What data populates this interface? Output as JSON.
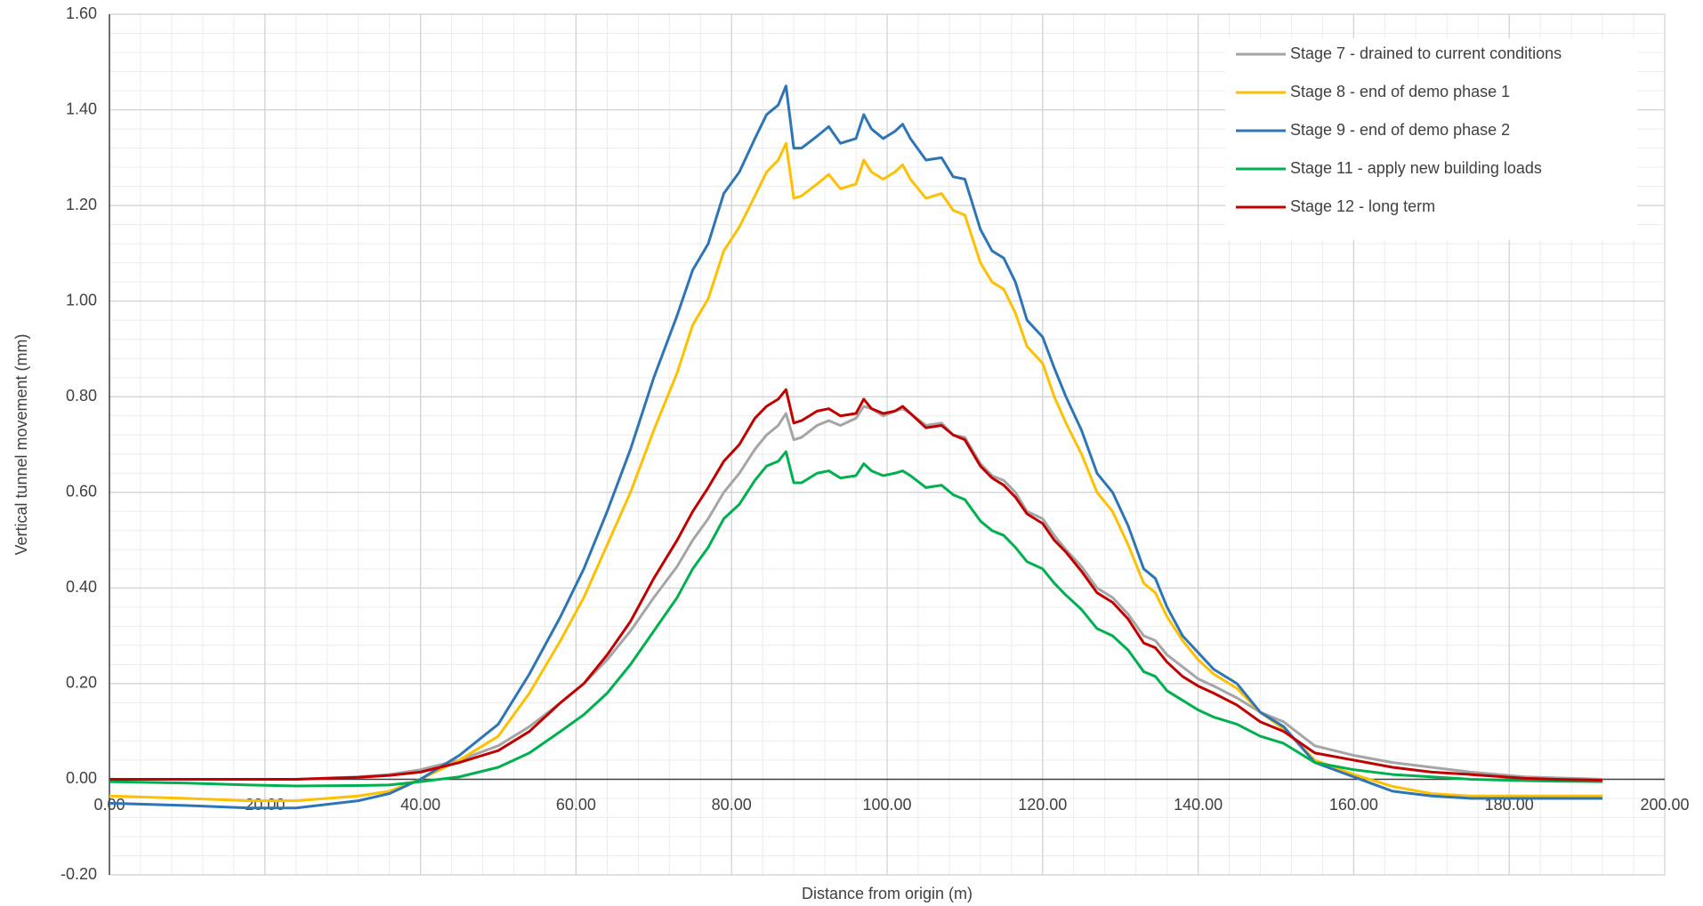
{
  "chart_data": {
    "type": "line",
    "x_label": "Distance from origin (m)",
    "y_label": "Vertical tunnel movement (mm)",
    "x": [
      0,
      10,
      18,
      24,
      32,
      36,
      40,
      45,
      50,
      54,
      58,
      61,
      64,
      67,
      70,
      73,
      75,
      77,
      79,
      81,
      83,
      84.5,
      86,
      87,
      88,
      89,
      91,
      92.5,
      94,
      96,
      97,
      98,
      99.5,
      101,
      102,
      103,
      105,
      107,
      108.5,
      110,
      112,
      113.5,
      115,
      116.5,
      118,
      120,
      121.5,
      123,
      125,
      127,
      129,
      131,
      133,
      134.5,
      136,
      138,
      140,
      142,
      145,
      148,
      151,
      155,
      160,
      165,
      170,
      175,
      182,
      186,
      192
    ],
    "series": [
      {
        "name": "Stage 7 - drained to current conditions",
        "color": "#a5a5a5",
        "values": [
          0,
          0,
          0,
          0,
          0.005,
          0.01,
          0.02,
          0.04,
          0.07,
          0.11,
          0.16,
          0.2,
          0.25,
          0.31,
          0.38,
          0.445,
          0.5,
          0.545,
          0.6,
          0.64,
          0.69,
          0.72,
          0.74,
          0.765,
          0.71,
          0.715,
          0.74,
          0.75,
          0.74,
          0.755,
          0.78,
          0.775,
          0.76,
          0.77,
          0.775,
          0.765,
          0.74,
          0.745,
          0.72,
          0.715,
          0.66,
          0.635,
          0.625,
          0.6,
          0.56,
          0.545,
          0.51,
          0.48,
          0.445,
          0.4,
          0.38,
          0.345,
          0.3,
          0.29,
          0.26,
          0.235,
          0.21,
          0.195,
          0.17,
          0.14,
          0.12,
          0.07,
          0.05,
          0.035,
          0.025,
          0.015,
          0.005,
          0.003,
          0
        ]
      },
      {
        "name": "Stage 8 - end of demo phase 1",
        "color": "#ffc000",
        "values": [
          -0.035,
          -0.04,
          -0.045,
          -0.045,
          -0.035,
          -0.025,
          0,
          0.04,
          0.09,
          0.18,
          0.29,
          0.38,
          0.49,
          0.6,
          0.73,
          0.85,
          0.95,
          1.005,
          1.105,
          1.155,
          1.22,
          1.27,
          1.295,
          1.33,
          1.215,
          1.22,
          1.245,
          1.265,
          1.235,
          1.245,
          1.295,
          1.27,
          1.255,
          1.27,
          1.285,
          1.255,
          1.215,
          1.225,
          1.19,
          1.18,
          1.08,
          1.04,
          1.025,
          0.975,
          0.905,
          0.87,
          0.8,
          0.745,
          0.68,
          0.6,
          0.56,
          0.49,
          0.41,
          0.39,
          0.34,
          0.29,
          0.25,
          0.22,
          0.19,
          0.14,
          0.105,
          0.04,
          0.01,
          -0.015,
          -0.03,
          -0.035,
          -0.035,
          -0.035,
          -0.035
        ]
      },
      {
        "name": "Stage 9 - end of demo phase 2",
        "color": "#2e75b6",
        "values": [
          -0.05,
          -0.055,
          -0.06,
          -0.06,
          -0.045,
          -0.03,
          0,
          0.05,
          0.115,
          0.22,
          0.34,
          0.44,
          0.56,
          0.69,
          0.84,
          0.97,
          1.065,
          1.12,
          1.225,
          1.27,
          1.34,
          1.39,
          1.41,
          1.45,
          1.32,
          1.32,
          1.345,
          1.365,
          1.33,
          1.34,
          1.39,
          1.36,
          1.34,
          1.355,
          1.37,
          1.34,
          1.295,
          1.3,
          1.26,
          1.255,
          1.15,
          1.105,
          1.09,
          1.04,
          0.96,
          0.925,
          0.86,
          0.8,
          0.73,
          0.64,
          0.6,
          0.53,
          0.44,
          0.42,
          0.36,
          0.3,
          0.265,
          0.23,
          0.2,
          0.14,
          0.11,
          0.035,
          0.005,
          -0.025,
          -0.035,
          -0.04,
          -0.04,
          -0.04,
          -0.04
        ]
      },
      {
        "name": "Stage 11 - apply new building loads",
        "color": "#00b050",
        "values": [
          -0.005,
          -0.008,
          -0.012,
          -0.014,
          -0.013,
          -0.012,
          -0.005,
          0.005,
          0.025,
          0.055,
          0.1,
          0.135,
          0.18,
          0.24,
          0.31,
          0.38,
          0.44,
          0.485,
          0.545,
          0.575,
          0.625,
          0.655,
          0.665,
          0.685,
          0.62,
          0.62,
          0.64,
          0.645,
          0.63,
          0.635,
          0.66,
          0.645,
          0.635,
          0.64,
          0.645,
          0.635,
          0.61,
          0.615,
          0.595,
          0.585,
          0.54,
          0.52,
          0.51,
          0.485,
          0.455,
          0.44,
          0.41,
          0.385,
          0.355,
          0.315,
          0.3,
          0.27,
          0.225,
          0.215,
          0.185,
          0.165,
          0.145,
          0.13,
          0.115,
          0.09,
          0.075,
          0.035,
          0.02,
          0.01,
          0.005,
          0,
          -0.003,
          -0.004,
          -0.005
        ]
      },
      {
        "name": "Stage 12 - long term",
        "color": "#c00000",
        "values": [
          0,
          0,
          0,
          0,
          0.004,
          0.008,
          0.015,
          0.035,
          0.06,
          0.1,
          0.16,
          0.2,
          0.26,
          0.33,
          0.42,
          0.5,
          0.56,
          0.61,
          0.665,
          0.7,
          0.755,
          0.78,
          0.795,
          0.815,
          0.745,
          0.75,
          0.77,
          0.775,
          0.76,
          0.765,
          0.795,
          0.775,
          0.765,
          0.77,
          0.78,
          0.765,
          0.735,
          0.74,
          0.72,
          0.71,
          0.655,
          0.63,
          0.615,
          0.59,
          0.555,
          0.535,
          0.5,
          0.475,
          0.435,
          0.39,
          0.37,
          0.335,
          0.285,
          0.275,
          0.245,
          0.215,
          0.195,
          0.18,
          0.155,
          0.12,
          0.1,
          0.055,
          0.04,
          0.025,
          0.015,
          0.01,
          0.002,
          0,
          -0.002
        ]
      }
    ],
    "xlim": [
      0,
      200
    ],
    "xticks": [
      {
        "value": 0,
        "label": "0.00"
      },
      {
        "value": 20,
        "label": "20.00"
      },
      {
        "value": 40,
        "label": "40.00"
      },
      {
        "value": 60,
        "label": "60.00"
      },
      {
        "value": 80,
        "label": "80.00"
      },
      {
        "value": 100,
        "label": "100.00"
      },
      {
        "value": 120,
        "label": "120.00"
      },
      {
        "value": 140,
        "label": "140.00"
      },
      {
        "value": 160,
        "label": "160.00"
      },
      {
        "value": 180,
        "label": "180.00"
      },
      {
        "value": 200,
        "label": "200.00"
      }
    ],
    "ylim": [
      -0.2,
      1.6
    ],
    "yticks": [
      {
        "value": -0.2,
        "label": "-0.20"
      },
      {
        "value": 0,
        "label": "0.00"
      },
      {
        "value": 0.2,
        "label": "0.20"
      },
      {
        "value": 0.4,
        "label": "0.40"
      },
      {
        "value": 0.6,
        "label": "0.60"
      },
      {
        "value": 0.8,
        "label": "0.80"
      },
      {
        "value": 1.0,
        "label": "1.00"
      },
      {
        "value": 1.2,
        "label": "1.20"
      },
      {
        "value": 1.4,
        "label": "1.40"
      },
      {
        "value": 1.6,
        "label": "1.60"
      }
    ],
    "x_minor_step": 4,
    "y_minor_step": 0.04,
    "grid": true,
    "legend": "top-right"
  }
}
